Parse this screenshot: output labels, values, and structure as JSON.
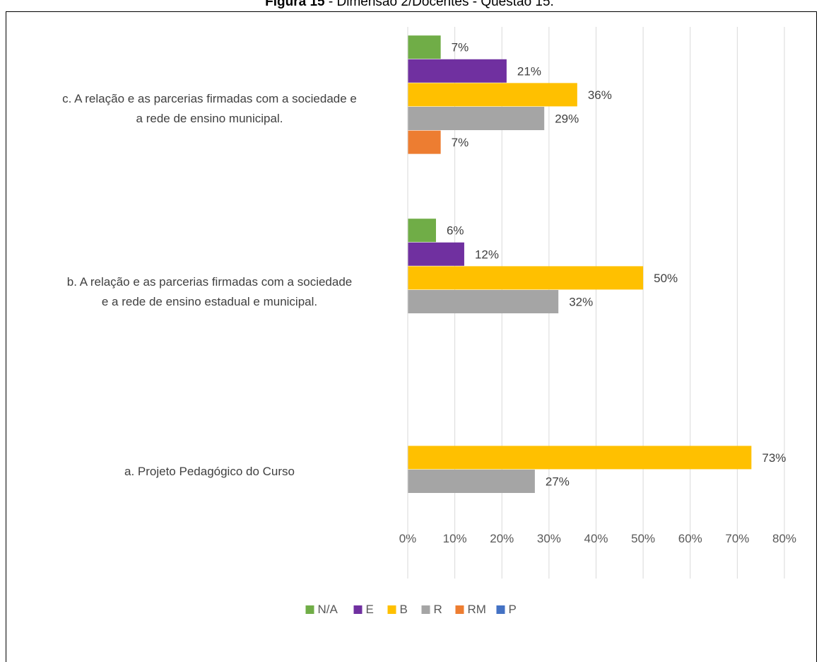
{
  "caption": {
    "bold": "Figura 15",
    "rest": " - Dimensão 2/Docentes - Questão 15."
  },
  "chart_data": {
    "type": "bar",
    "orientation": "horizontal",
    "title": "",
    "xlabel": "",
    "ylabel": "",
    "xlim": [
      0,
      0.8
    ],
    "x_ticks": [
      "0%",
      "10%",
      "20%",
      "30%",
      "40%",
      "50%",
      "60%",
      "70%",
      "80%"
    ],
    "grid": true,
    "legend_position": "bottom",
    "categories": [
      {
        "lines": [
          "c. A relação e as parcerias firmadas com a sociedade e",
          "a rede de ensino municipal."
        ]
      },
      {
        "lines": [
          "b. A relação e as parcerias firmadas com a sociedade",
          "e a rede de ensino estadual e municipal."
        ]
      },
      {
        "lines": [
          "a. Projeto Pedagógico do Curso"
        ]
      }
    ],
    "series": [
      {
        "name": "N/A",
        "color": "#70AD47",
        "values": [
          0.07,
          0.06,
          null
        ],
        "labels": [
          "7%",
          "6%",
          ""
        ]
      },
      {
        "name": "E",
        "color": "#7030A0",
        "values": [
          0.21,
          0.12,
          null
        ],
        "labels": [
          "21%",
          "12%",
          ""
        ]
      },
      {
        "name": "B",
        "color": "#FFC000",
        "values": [
          0.36,
          0.5,
          0.73
        ],
        "labels": [
          "36%",
          "50%",
          "73%"
        ]
      },
      {
        "name": "R",
        "color": "#A5A5A5",
        "values": [
          0.29,
          0.32,
          0.27
        ],
        "labels": [
          "29%",
          "32%",
          "27%"
        ]
      },
      {
        "name": "RM",
        "color": "#ED7D31",
        "values": [
          0.07,
          null,
          null
        ],
        "labels": [
          "7%",
          "",
          ""
        ]
      },
      {
        "name": "P",
        "color": "#4472C4",
        "values": [
          null,
          null,
          null
        ],
        "labels": [
          "",
          "",
          ""
        ]
      }
    ]
  }
}
